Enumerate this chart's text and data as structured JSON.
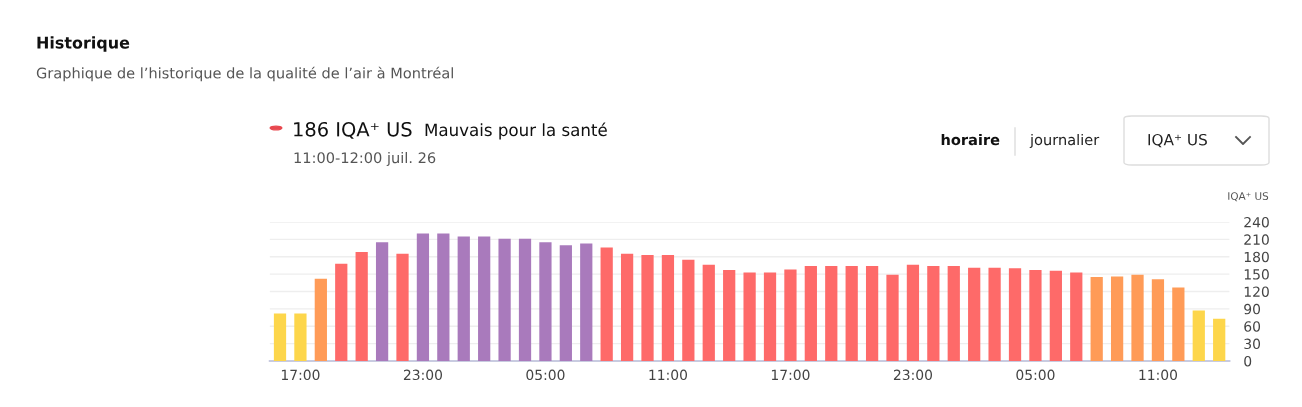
{
  "chart_data": {
    "type": "bar",
    "title": "Historique",
    "subtitle": "Graphique de l’historique de la qualité de l’air à Montréal",
    "ylabel": "IQA⁺ US",
    "annotations": [
      "186 IQA⁺ US",
      "Mauvais pour la santé",
      "11:00-12:00 juil. 26",
      "horaire",
      "journalier",
      "IQA⁺ US"
    ],
    "categories": [
      null,
      "17:00",
      null,
      null,
      null,
      null,
      null,
      "23:00",
      null,
      null,
      null,
      null,
      null,
      "05:00",
      null,
      null,
      null,
      null,
      null,
      "11:00",
      null,
      null,
      null,
      null,
      null,
      "17:00",
      null,
      null,
      null,
      null,
      null,
      "23:00",
      null,
      null,
      null,
      null,
      null,
      "05:00",
      null,
      null,
      null,
      null,
      null,
      "11:00",
      null,
      null,
      null
    ],
    "values": [
      82,
      82,
      142,
      168,
      188,
      205,
      185,
      220,
      220,
      215,
      215,
      211,
      211,
      205,
      200,
      203,
      196,
      185,
      183,
      183,
      175,
      166,
      157,
      153,
      153,
      158,
      164,
      164,
      164,
      164,
      149,
      166,
      164,
      164,
      161,
      161,
      160,
      157,
      156,
      153,
      145,
      146,
      149,
      141,
      127,
      87,
      73
    ],
    "colors": [
      "#fdd64b",
      "#fdd64b",
      "#ff9b57",
      "#fe6a69",
      "#fe6a69",
      "#a97abc",
      "#fe6a69",
      "#a97abc",
      "#a97abc",
      "#a97abc",
      "#a97abc",
      "#a97abc",
      "#a97abc",
      "#a97abc",
      "#a97abc",
      "#a97abc",
      "#fe6a69",
      "#fe6a69",
      "#fe6a69",
      "#fe6a69",
      "#fe6a69",
      "#fe6a69",
      "#fe6a69",
      "#fe6a69",
      "#fe6a69",
      "#fe6a69",
      "#fe6a69",
      "#fe6a69",
      "#fe6a69",
      "#fe6a69",
      "#fe6a69",
      "#fe6a69",
      "#fe6a69",
      "#fe6a69",
      "#fe6a69",
      "#fe6a69",
      "#fe6a69",
      "#fe6a69",
      "#fe6a69",
      "#fe6a69",
      "#ff9b57",
      "#ff9b57",
      "#ff9b57",
      "#ff9b57",
      "#ff9b57",
      "#fdd64b",
      "#fdd64b"
    ],
    "ylim": [
      0,
      240
    ],
    "yticks": [
      0,
      30,
      60,
      90,
      120,
      150,
      180,
      210,
      240
    ],
    "grid": "y",
    "legend": false
  }
}
